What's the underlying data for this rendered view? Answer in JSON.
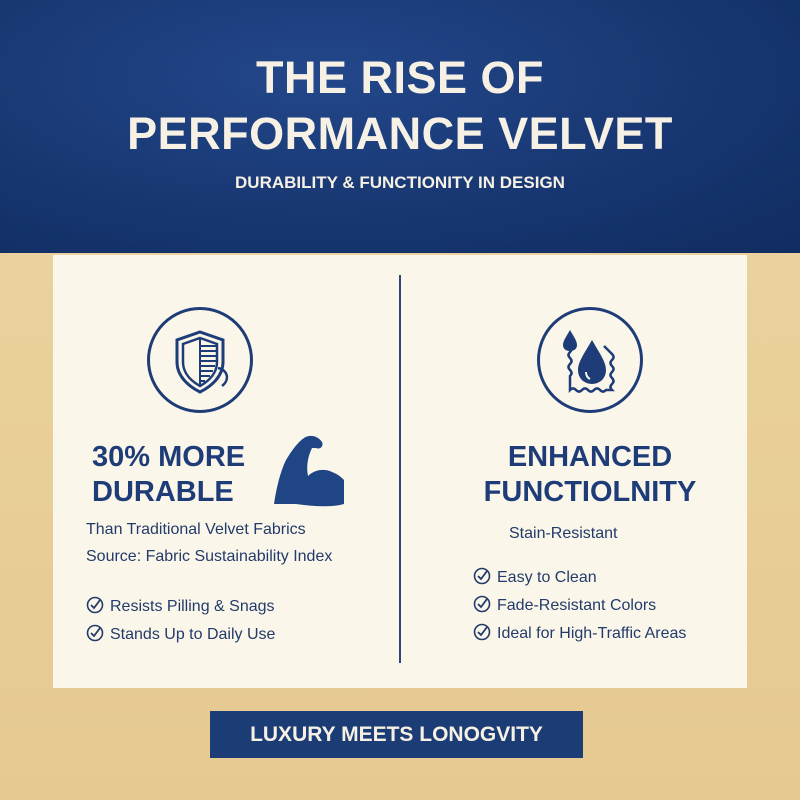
{
  "header": {
    "title_line1": "THE RISE OF",
    "title_line2": "PERFORMANCE VELVET",
    "subtitle": "DURABILITY & FUNCTIONITY IN DESIGN"
  },
  "left": {
    "icon": "shield-icon",
    "headline_line1": "30% MORE",
    "headline_line2": "DURABLE",
    "headline_icon": "flexed-bicep-icon",
    "stat_value": "30%",
    "description": "Than Traditional Velvet Fabrics",
    "source": "Source: Fabric Sustainability Index",
    "features": [
      "Resists Pilling & Snags",
      "Stands Up to Daily Use"
    ]
  },
  "right": {
    "icon": "water-drop-fabric-icon",
    "headline_line1": "ENHANCED",
    "headline_line2": "FUNCTIOLNITY",
    "description": "Stain-Resistant",
    "features": [
      "Easy to Clean",
      "Fade-Resistant Colors",
      "Ideal for High-Traffic Areas"
    ]
  },
  "banner": {
    "label": "LUXURY MEETS LONOGVITY"
  },
  "colors": {
    "navy": "#1e3d78",
    "beige": "#e8cf9a",
    "panel": "#fbf6ea"
  }
}
